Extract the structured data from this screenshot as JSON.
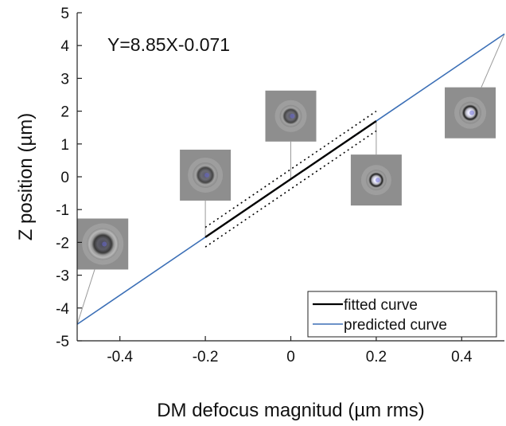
{
  "chart_data": {
    "type": "line",
    "title": "",
    "xlabel": "DM defocus magnitud (µm rms)",
    "ylabel": "Z position (µm)",
    "xlim": [
      -0.5,
      0.5
    ],
    "ylim": [
      -5,
      5
    ],
    "xticks": [
      -0.4,
      -0.2,
      0,
      0.2,
      0.4
    ],
    "xtick_labels": [
      "-0.4",
      "-0.2",
      "0",
      "0.2",
      "0.4"
    ],
    "yticks": [
      -5,
      -4,
      -3,
      -2,
      -1,
      0,
      1,
      2,
      3,
      4,
      5
    ],
    "ytick_labels": [
      "-5",
      "-4",
      "-3",
      "-2",
      "-1",
      "0",
      "1",
      "2",
      "3",
      "4",
      "5"
    ],
    "grid": false,
    "annotation": "Y=8.85X-0.071",
    "series": [
      {
        "name": "fitted curve",
        "color": "#000000",
        "style": "solid",
        "x": [
          -0.2,
          0.2
        ],
        "y": [
          -1.841,
          1.699
        ]
      },
      {
        "name": "predicted curve",
        "color": "#3b6fb6",
        "style": "solid",
        "x": [
          -0.5,
          0.5
        ],
        "y": [
          -4.496,
          4.354
        ]
      },
      {
        "name": "",
        "color": "#000000",
        "style": "dotted",
        "x": [
          -0.2,
          0.2
        ],
        "y": [
          -1.541,
          1.999
        ]
      },
      {
        "name": "",
        "color": "#000000",
        "style": "dotted",
        "x": [
          -0.2,
          0.2
        ],
        "y": [
          -2.141,
          1.399
        ]
      }
    ],
    "legend": {
      "position": "bottom-right",
      "entries": [
        "fitted curve",
        "predicted curve"
      ]
    },
    "insets": [
      {
        "name": "bead-image-1",
        "x": -0.5,
        "y": -4.5,
        "center_x": -0.44,
        "center_y": -2.05
      },
      {
        "name": "bead-image-2",
        "x": -0.2,
        "y": -1.8,
        "center_x": -0.2,
        "center_y": 0.05
      },
      {
        "name": "bead-image-3",
        "x": 0,
        "y": -0.07,
        "center_x": 0,
        "center_y": 1.85
      },
      {
        "name": "bead-image-4",
        "x": 0.2,
        "y": 1.7,
        "center_x": 0.2,
        "center_y": -0.1
      },
      {
        "name": "bead-image-5",
        "x": 0.5,
        "y": 4.35,
        "center_x": 0.42,
        "center_y": 1.95
      }
    ]
  }
}
